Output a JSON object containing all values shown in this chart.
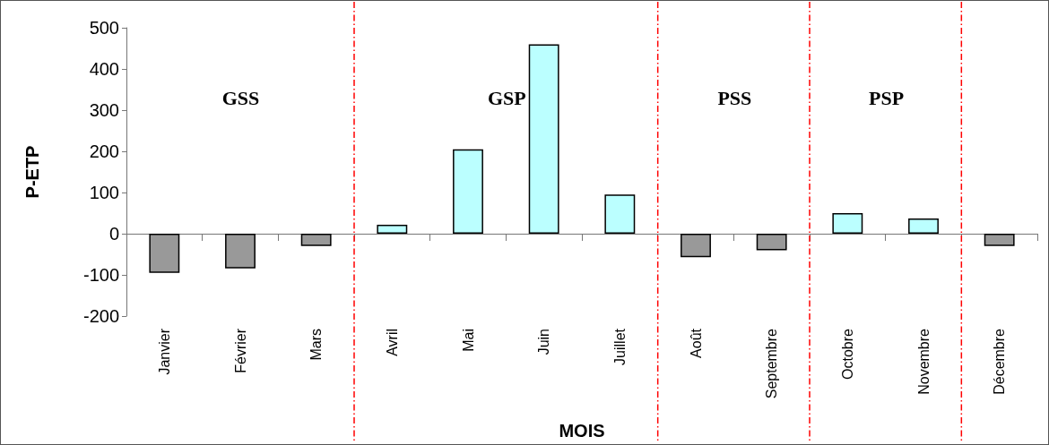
{
  "chart_data": {
    "type": "bar",
    "xlabel": "MOIS",
    "ylabel": "P-ETP",
    "categories": [
      "Janvier",
      "Février",
      "Mars",
      "Avril",
      "Mai",
      "Juin",
      "Juillet",
      "Août",
      "Septembre",
      "Octobre",
      "Novembre",
      "Décembre"
    ],
    "values": [
      -95,
      -84,
      -30,
      22,
      205,
      460,
      95,
      -57,
      -40,
      50,
      37,
      -30
    ],
    "colors": [
      "#999999",
      "#999999",
      "#999999",
      "#bbffff",
      "#bbffff",
      "#bbffff",
      "#bbffff",
      "#999999",
      "#999999",
      "#bbffff",
      "#bbffff",
      "#999999"
    ],
    "ylim": [
      -200,
      500
    ],
    "yticks": [
      -200,
      -100,
      0,
      100,
      200,
      300,
      400,
      500
    ],
    "annotations": [
      "GSS",
      "GSP",
      "PSS",
      "PSP"
    ]
  }
}
